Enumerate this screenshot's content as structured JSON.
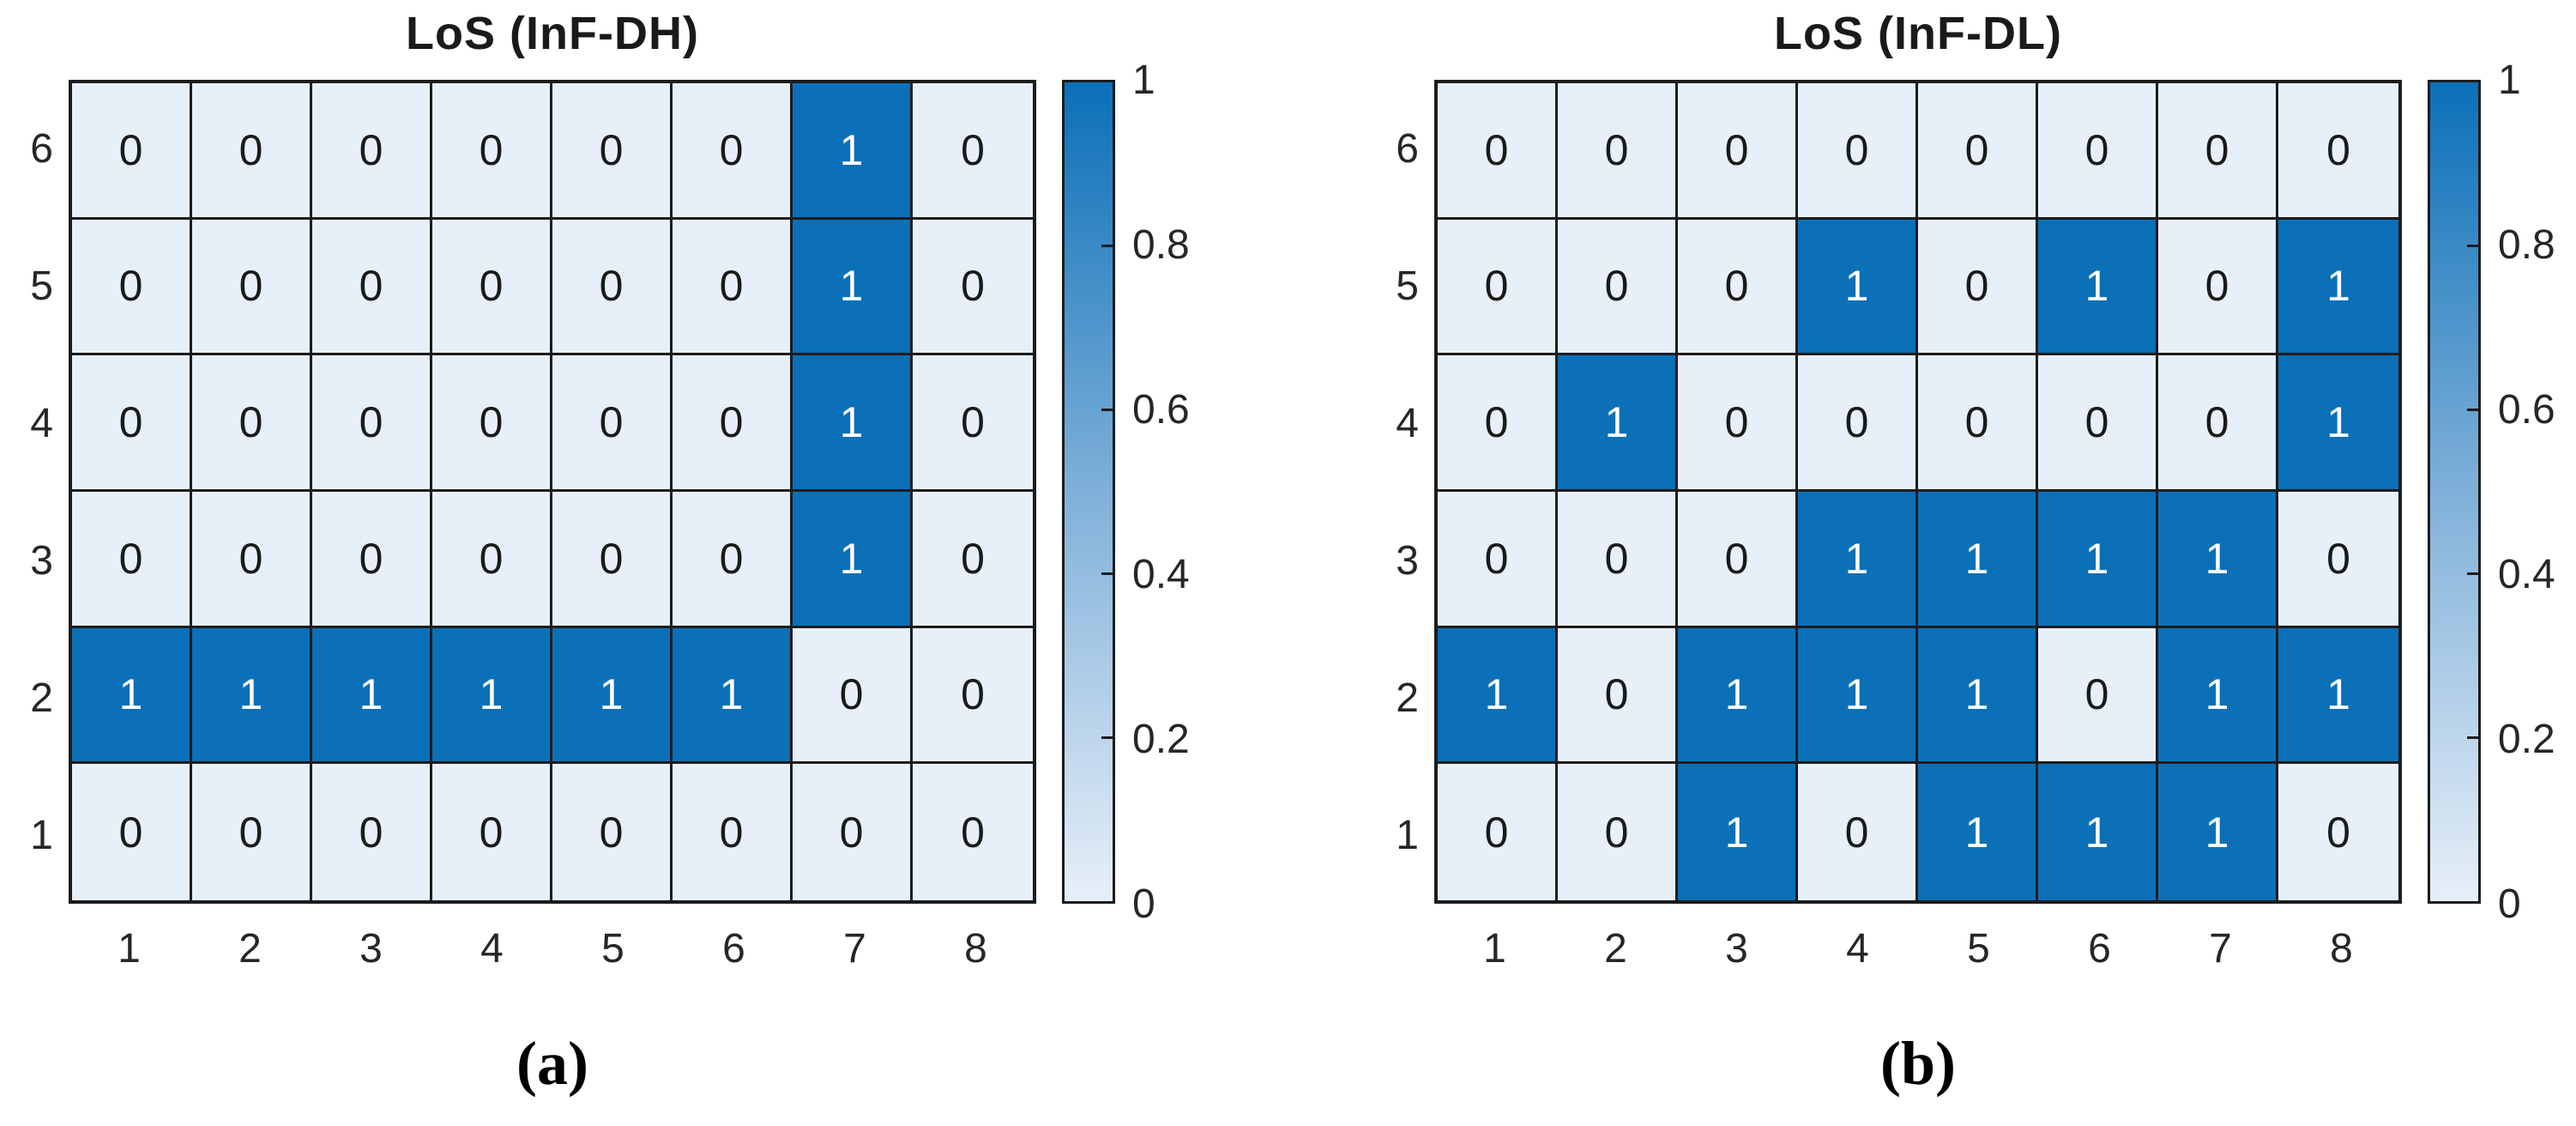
{
  "colors": {
    "cell_on": "#0b70b8",
    "cell_off": "#e7eff8",
    "grid_line": "#1c1c1c",
    "value_text_on": "#ffffff",
    "value_text_off": "#1a1a1a"
  },
  "chart_data": [
    {
      "type": "heatmap",
      "title": "LoS (InF-DH)",
      "caption": "(a)",
      "x_labels": [
        "1",
        "2",
        "3",
        "4",
        "5",
        "6",
        "7",
        "8"
      ],
      "y_labels_top_to_bottom": [
        "6",
        "5",
        "4",
        "3",
        "2",
        "1"
      ],
      "rows_top_to_bottom": [
        [
          0,
          0,
          0,
          0,
          0,
          0,
          1,
          0
        ],
        [
          0,
          0,
          0,
          0,
          0,
          0,
          1,
          0
        ],
        [
          0,
          0,
          0,
          0,
          0,
          0,
          1,
          0
        ],
        [
          0,
          0,
          0,
          0,
          0,
          0,
          1,
          0
        ],
        [
          1,
          1,
          1,
          1,
          1,
          1,
          0,
          0
        ],
        [
          0,
          0,
          0,
          0,
          0,
          0,
          0,
          0
        ]
      ],
      "colorbar": {
        "min": 0,
        "max": 1,
        "tick_labels_top_to_bottom": [
          "1",
          "0.8",
          "0.6",
          "0.4",
          "0.2",
          "0"
        ],
        "tick_values_with_dash": [
          0.8,
          0.6,
          0.4,
          0.2
        ]
      }
    },
    {
      "type": "heatmap",
      "title": "LoS (InF-DL)",
      "caption": "(b)",
      "x_labels": [
        "1",
        "2",
        "3",
        "4",
        "5",
        "6",
        "7",
        "8"
      ],
      "y_labels_top_to_bottom": [
        "6",
        "5",
        "4",
        "3",
        "2",
        "1"
      ],
      "rows_top_to_bottom": [
        [
          0,
          0,
          0,
          0,
          0,
          0,
          0,
          0
        ],
        [
          0,
          0,
          0,
          1,
          0,
          1,
          0,
          1
        ],
        [
          0,
          1,
          0,
          0,
          0,
          0,
          0,
          1
        ],
        [
          0,
          0,
          0,
          1,
          1,
          1,
          1,
          0
        ],
        [
          1,
          0,
          1,
          1,
          1,
          0,
          1,
          1
        ],
        [
          0,
          0,
          1,
          0,
          1,
          1,
          1,
          0
        ]
      ],
      "colorbar": {
        "min": 0,
        "max": 1,
        "tick_labels_top_to_bottom": [
          "1",
          "0.8",
          "0.6",
          "0.4",
          "0.2",
          "0"
        ],
        "tick_values_with_dash": [
          0.8,
          0.6,
          0.4,
          0.2
        ]
      }
    }
  ]
}
